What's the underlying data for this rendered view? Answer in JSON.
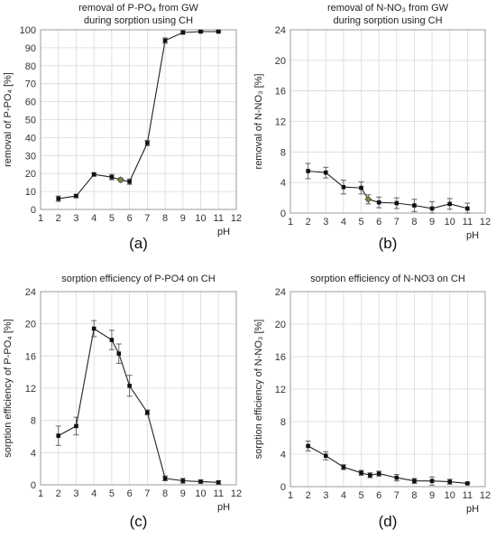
{
  "chart_data": [
    {
      "id": "a",
      "type": "line",
      "title_lines": [
        "removal of P-PO₄ from GW",
        "during sorption using CH"
      ],
      "ylabel": "removal of P-PO₄ [%]",
      "xlabel": "pH",
      "panel_label": "(a)",
      "xlim": [
        1,
        12
      ],
      "ylim": [
        0,
        100
      ],
      "xticks": [
        1,
        2,
        3,
        4,
        5,
        6,
        7,
        8,
        9,
        10,
        11,
        12
      ],
      "yticks": [
        0,
        10,
        20,
        30,
        40,
        50,
        60,
        70,
        80,
        90,
        100
      ],
      "grid": true,
      "x": [
        2,
        3,
        4,
        5,
        5.5,
        6,
        7,
        8,
        9,
        10,
        11
      ],
      "y": [
        6,
        7.5,
        19.5,
        18,
        16.5,
        15.5,
        37,
        94,
        98.5,
        99,
        99
      ],
      "err": [
        1.5,
        1,
        1,
        1.5,
        1,
        1.5,
        1.5,
        1.5,
        1,
        0.5,
        0.5
      ],
      "highlight_index": 4,
      "highlight_color": "#7a8a3a"
    },
    {
      "id": "b",
      "type": "line",
      "title_lines": [
        "removal of N-NO₃ from GW",
        "during sorption using CH"
      ],
      "ylabel": "removal of N-NO₃ [%]",
      "xlabel": "pH",
      "panel_label": "(b)",
      "xlim": [
        1,
        12
      ],
      "ylim": [
        0,
        24
      ],
      "xticks": [
        1,
        2,
        3,
        4,
        5,
        6,
        7,
        8,
        9,
        10,
        11,
        12
      ],
      "yticks": [
        0,
        4,
        8,
        12,
        16,
        20,
        24
      ],
      "grid": true,
      "x": [
        2,
        3,
        4,
        5,
        5.4,
        6,
        7,
        8,
        9,
        10,
        11
      ],
      "y": [
        5.5,
        5.3,
        3.4,
        3.3,
        1.8,
        1.4,
        1.3,
        1.0,
        0.6,
        1.2,
        0.6
      ],
      "err": [
        1,
        0.7,
        0.9,
        0.8,
        0.6,
        0.7,
        0.7,
        0.8,
        0.9,
        0.7,
        0.7
      ],
      "highlight_index": 4,
      "highlight_color": "#7a8a3a"
    },
    {
      "id": "c",
      "type": "line",
      "title_lines": [
        "sorption efficiency of P-PO4 on CH"
      ],
      "ylabel": "sorption efficiency of P-PO₄ [%]",
      "xlabel": "pH",
      "panel_label": "(c)",
      "xlim": [
        1,
        12
      ],
      "ylim": [
        0,
        24
      ],
      "xticks": [
        1,
        2,
        3,
        4,
        5,
        6,
        7,
        8,
        9,
        10,
        11,
        12
      ],
      "yticks": [
        0,
        4,
        8,
        12,
        16,
        20,
        24
      ],
      "grid": true,
      "x": [
        2,
        3,
        4,
        5,
        5.4,
        6,
        7,
        8,
        9,
        10,
        11
      ],
      "y": [
        6.1,
        7.3,
        19.4,
        18.0,
        16.3,
        12.3,
        9.0,
        0.8,
        0.5,
        0.4,
        0.3
      ],
      "err": [
        1.2,
        1.1,
        1.0,
        1.2,
        1.2,
        1.3,
        0.3,
        0.3,
        0.3,
        0.2,
        0.2
      ]
    },
    {
      "id": "d",
      "type": "line",
      "title_lines": [
        "sorption efficiency of N-NO3 on CH"
      ],
      "ylabel": "sorption efficiency of N-NO₃ [%]",
      "xlabel": "pH",
      "panel_label": "(d)",
      "xlim": [
        1,
        12
      ],
      "ylim": [
        0,
        24
      ],
      "xticks": [
        1,
        2,
        3,
        4,
        5,
        6,
        7,
        8,
        9,
        10,
        11,
        12
      ],
      "yticks": [
        0,
        4,
        8,
        12,
        16,
        20,
        24
      ],
      "grid": true,
      "x": [
        2,
        3,
        4,
        5,
        5.5,
        6,
        7,
        8,
        9,
        10,
        11
      ],
      "y": [
        5.0,
        3.8,
        2.4,
        1.7,
        1.4,
        1.6,
        1.1,
        0.7,
        0.7,
        0.6,
        0.4
      ],
      "err": [
        0.6,
        0.5,
        0.3,
        0.3,
        0.3,
        0.3,
        0.4,
        0.3,
        0.5,
        0.3,
        0.1
      ]
    }
  ]
}
